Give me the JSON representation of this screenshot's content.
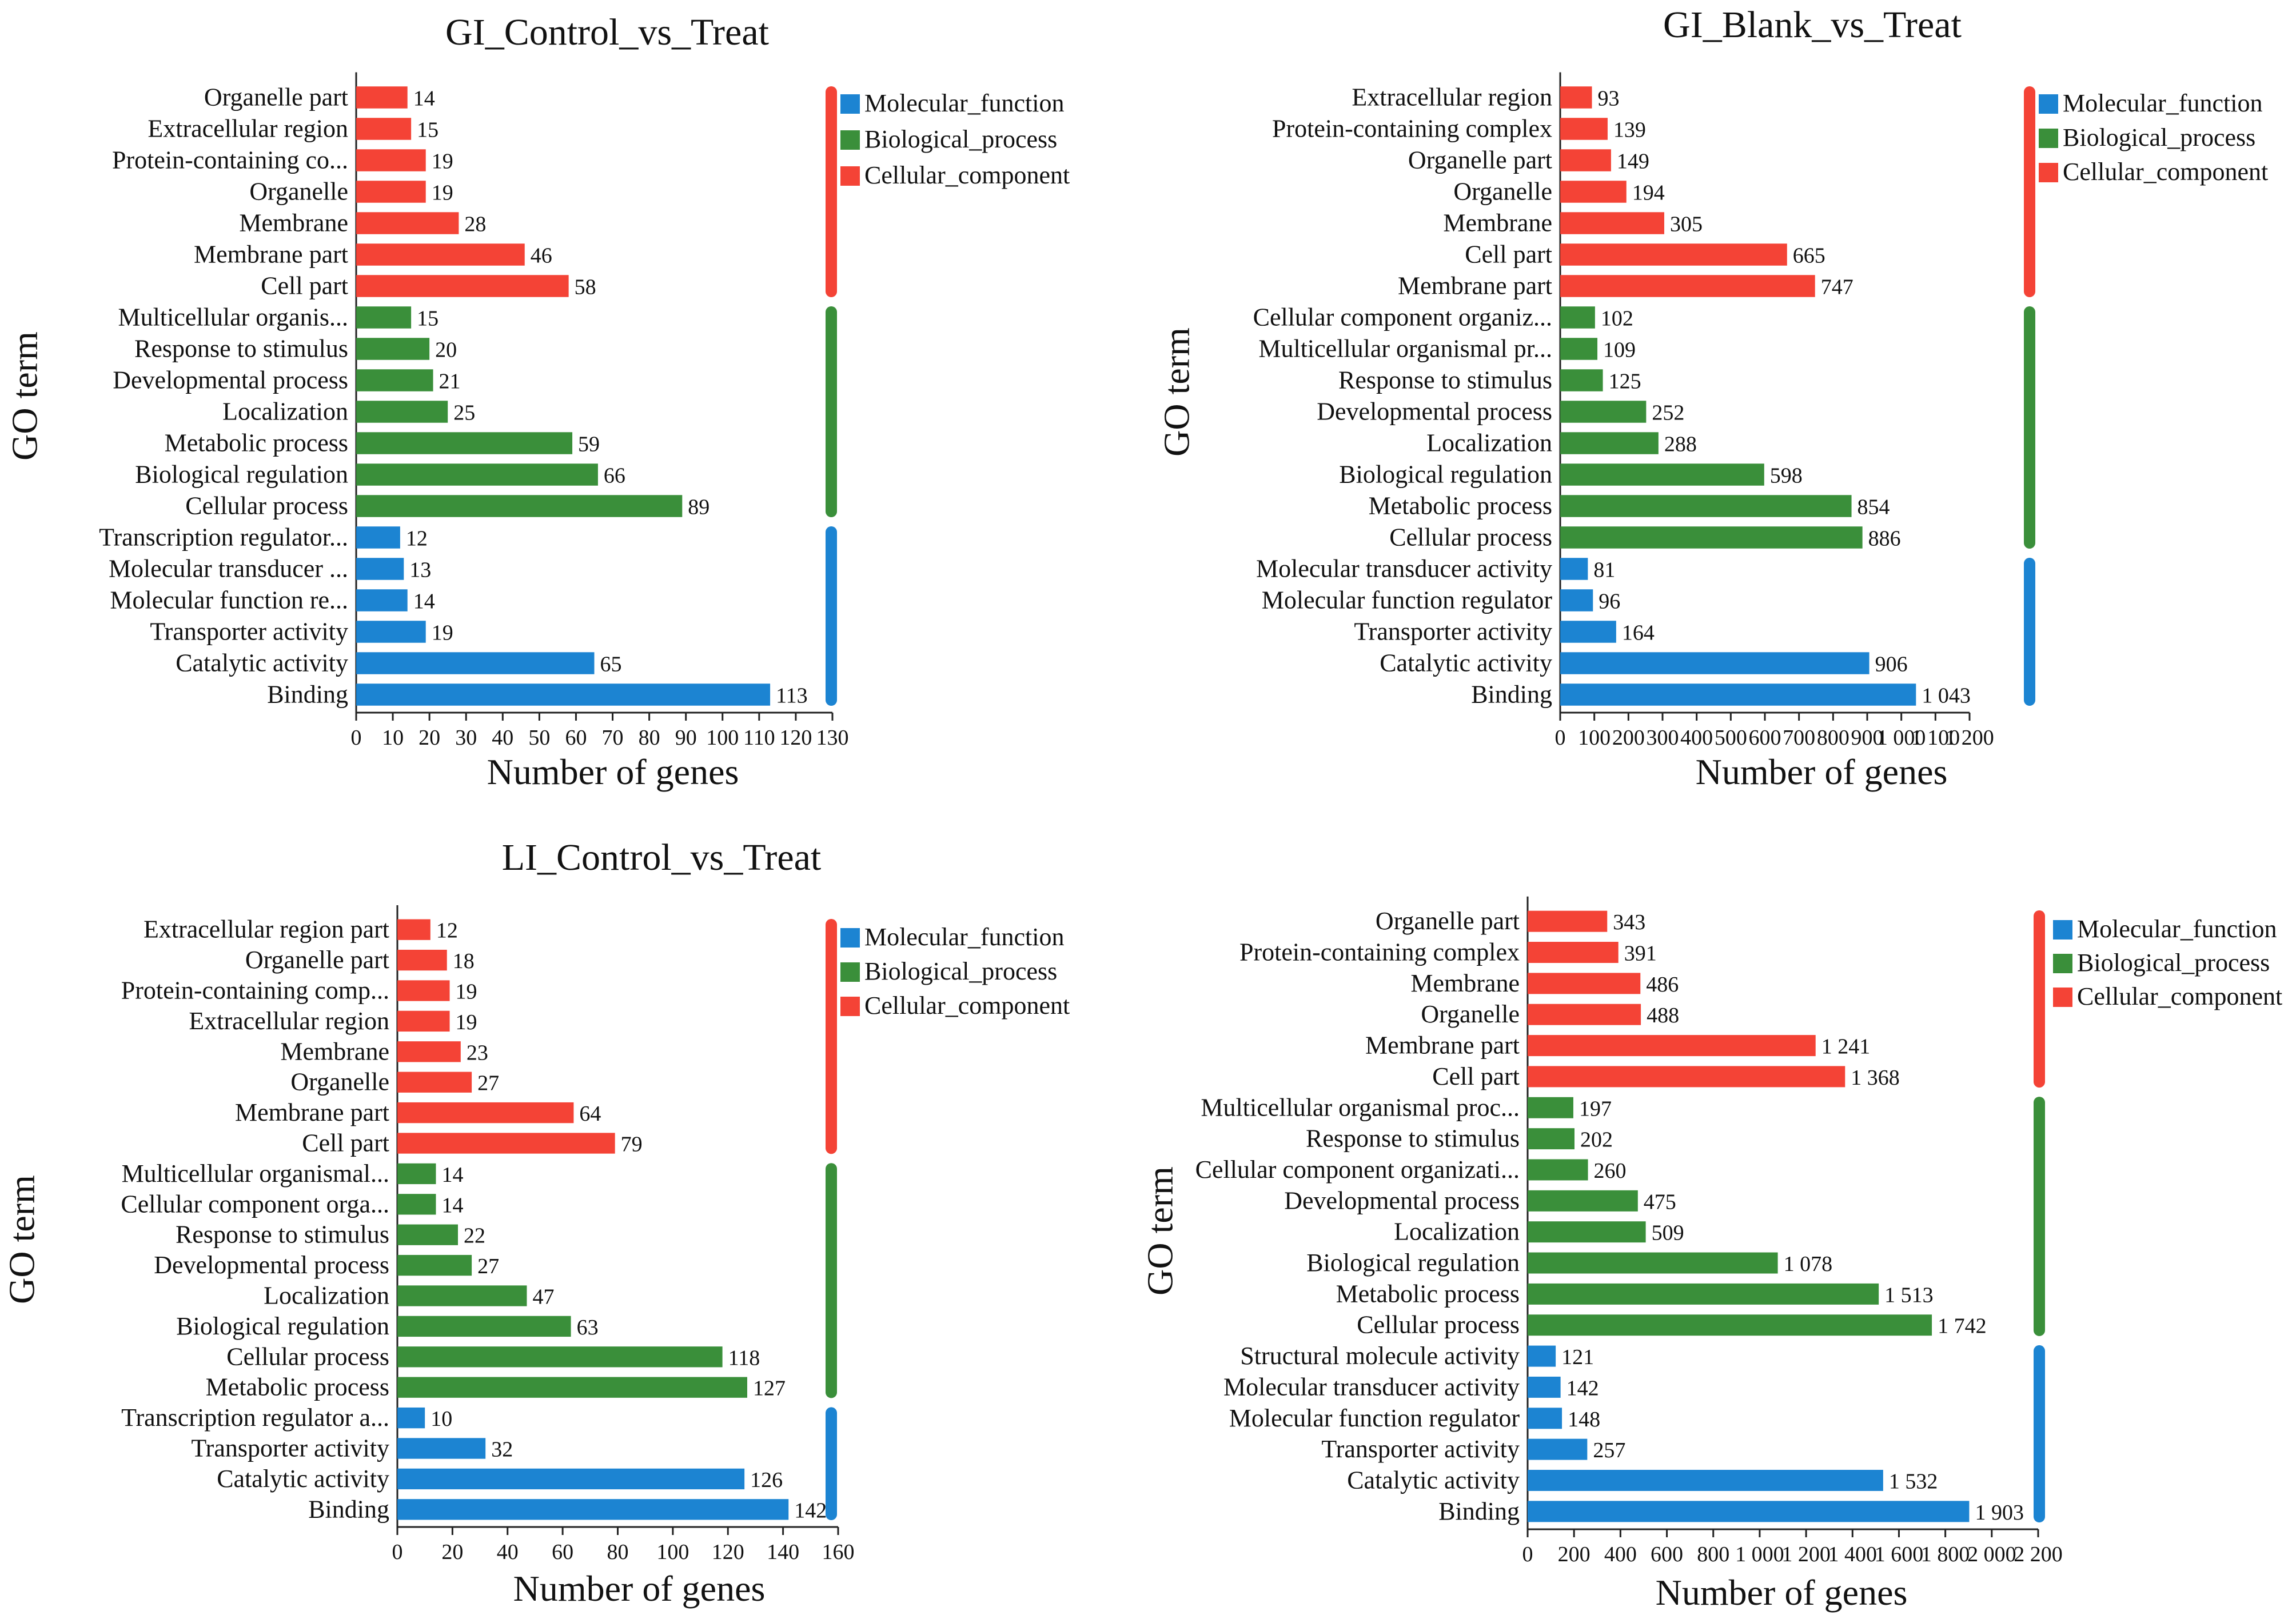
{
  "colors": {
    "molecular_function": "#1C84D2",
    "biological_process": "#3A8F3A",
    "cellular_component": "#F44336"
  },
  "chart_data": [
    {
      "type": "bar",
      "orientation": "horizontal",
      "title": "GI_Control_vs_Treat",
      "xlabel": "Number of genes",
      "ylabel": "GO term",
      "xlim": [
        0,
        130
      ],
      "xticks": [
        "0",
        "10",
        "20",
        "30",
        "40",
        "50",
        "60",
        "70",
        "80",
        "90",
        "100",
        "110",
        "120",
        "130"
      ],
      "legend": [
        "Molecular_function",
        "Biological_process",
        "Cellular_component"
      ],
      "legend_position": "right",
      "groups": [
        {
          "name": "Cellular_component",
          "labels": [
            "Organelle part",
            "Extracellular region",
            "Protein-containing co...",
            "Organelle",
            "Membrane",
            "Membrane part",
            "Cell part"
          ],
          "values": [
            14,
            15,
            19,
            19,
            28,
            46,
            58
          ],
          "value_labels": [
            "14",
            "15",
            "19",
            "19",
            "28",
            "46",
            "58"
          ]
        },
        {
          "name": "Biological_process",
          "labels": [
            "Multicellular organis...",
            "Response to stimulus",
            "Developmental process",
            "Localization",
            "Metabolic process",
            "Biological regulation",
            "Cellular process"
          ],
          "values": [
            15,
            20,
            21,
            25,
            59,
            66,
            89
          ],
          "value_labels": [
            "15",
            "20",
            "21",
            "25",
            "59",
            "66",
            "89"
          ]
        },
        {
          "name": "Molecular_function",
          "labels": [
            "Transcription regulator...",
            "Molecular transducer ...",
            "Molecular function re...",
            "Transporter activity",
            "Catalytic activity",
            "Binding"
          ],
          "values": [
            12,
            13,
            14,
            19,
            65,
            113
          ],
          "value_labels": [
            "12",
            "13",
            "14",
            "19",
            "65",
            "113"
          ]
        }
      ]
    },
    {
      "type": "bar",
      "orientation": "horizontal",
      "title": "GI_Blank_vs_Treat",
      "xlabel": "Number of genes",
      "ylabel": "GO term",
      "xlim": [
        0,
        1200
      ],
      "xticks": [
        "0",
        "100",
        "200",
        "300",
        "400",
        "500",
        "600",
        "700",
        "800",
        "900",
        "1 000",
        "1 100",
        "1 200"
      ],
      "legend": [
        "Molecular_function",
        "Biological_process",
        "Cellular_component"
      ],
      "legend_position": "right",
      "groups": [
        {
          "name": "Cellular_component",
          "labels": [
            "Extracellular region",
            "Protein-containing complex",
            "Organelle part",
            "Organelle",
            "Membrane",
            "Cell part",
            "Membrane part"
          ],
          "values": [
            93,
            139,
            149,
            194,
            305,
            665,
            747
          ],
          "value_labels": [
            "93",
            "139",
            "149",
            "194",
            "305",
            "665",
            "747"
          ]
        },
        {
          "name": "Biological_process",
          "labels": [
            "Cellular component organiz...",
            "Multicellular organismal pr...",
            "Response to stimulus",
            "Developmental process",
            "Localization",
            "Biological regulation",
            "Metabolic process",
            "Cellular process"
          ],
          "values": [
            102,
            109,
            125,
            252,
            288,
            598,
            854,
            886
          ],
          "value_labels": [
            "102",
            "109",
            "125",
            "252",
            "288",
            "598",
            "854",
            "886"
          ]
        },
        {
          "name": "Molecular_function",
          "labels": [
            "Molecular transducer activity",
            "Molecular function regulator",
            "Transporter activity",
            "Catalytic activity",
            "Binding"
          ],
          "values": [
            81,
            96,
            164,
            906,
            1043
          ],
          "value_labels": [
            "81",
            "96",
            "164",
            "906",
            "1 043"
          ]
        }
      ]
    },
    {
      "type": "bar",
      "orientation": "horizontal",
      "title": "LI_Control_vs_Treat",
      "xlabel": "Number of genes",
      "ylabel": "GO term",
      "xlim": [
        0,
        160
      ],
      "xticks": [
        "0",
        "20",
        "40",
        "60",
        "80",
        "100",
        "120",
        "140",
        "160"
      ],
      "legend": [
        "Molecular_function",
        "Biological_process",
        "Cellular_component"
      ],
      "legend_position": "right",
      "groups": [
        {
          "name": "Cellular_component",
          "labels": [
            "Extracellular region part",
            "Organelle part",
            "Protein-containing comp...",
            "Extracellular region",
            "Membrane",
            "Organelle",
            "Membrane part",
            "Cell part"
          ],
          "values": [
            12,
            18,
            19,
            19,
            23,
            27,
            64,
            79
          ],
          "value_labels": [
            "12",
            "18",
            "19",
            "19",
            "23",
            "27",
            "64",
            "79"
          ]
        },
        {
          "name": "Biological_process",
          "labels": [
            "Multicellular organismal...",
            "Cellular component orga...",
            "Response to stimulus",
            "Developmental process",
            "Localization",
            "Biological regulation",
            "Cellular process",
            "Metabolic process"
          ],
          "values": [
            14,
            14,
            22,
            27,
            47,
            63,
            118,
            127
          ],
          "value_labels": [
            "14",
            "14",
            "22",
            "27",
            "47",
            "63",
            "118",
            "127"
          ]
        },
        {
          "name": "Molecular_function",
          "labels": [
            "Transcription regulator a...",
            "Transporter activity",
            "Catalytic activity",
            "Binding"
          ],
          "values": [
            10,
            32,
            126,
            142
          ],
          "value_labels": [
            "10",
            "32",
            "126",
            "142"
          ]
        }
      ]
    },
    {
      "type": "bar",
      "orientation": "horizontal",
      "title": "",
      "xlabel": "Number of genes",
      "ylabel": "GO term",
      "xlim": [
        0,
        2200
      ],
      "xticks": [
        "0",
        "200",
        "400",
        "600",
        "800",
        "1 000",
        "1 200",
        "1 400",
        "1 600",
        "1 800",
        "2 000",
        "2 200"
      ],
      "legend": [
        "Molecular_function",
        "Biological_process",
        "Cellular_component"
      ],
      "legend_position": "right",
      "groups": [
        {
          "name": "Cellular_component",
          "labels": [
            "Organelle part",
            "Protein-containing complex",
            "Membrane",
            "Organelle",
            "Membrane part",
            "Cell part"
          ],
          "values": [
            343,
            391,
            486,
            488,
            1241,
            1368
          ],
          "value_labels": [
            "343",
            "391",
            "486",
            "488",
            "1 241",
            "1 368"
          ]
        },
        {
          "name": "Biological_process",
          "labels": [
            "Multicellular organismal proc...",
            "Response to stimulus",
            "Cellular component organizati...",
            "Developmental process",
            "Localization",
            "Biological regulation",
            "Metabolic process",
            "Cellular process"
          ],
          "values": [
            197,
            202,
            260,
            475,
            509,
            1078,
            1513,
            1742
          ],
          "value_labels": [
            "197",
            "202",
            "260",
            "475",
            "509",
            "1 078",
            "1 513",
            "1 742"
          ]
        },
        {
          "name": "Molecular_function",
          "labels": [
            "Structural molecule activity",
            "Molecular transducer activity",
            "Molecular function regulator",
            "Transporter activity",
            "Catalytic activity",
            "Binding"
          ],
          "values": [
            121,
            142,
            148,
            257,
            1532,
            1903
          ],
          "value_labels": [
            "121",
            "142",
            "148",
            "257",
            "1 532",
            "1 903"
          ]
        }
      ]
    }
  ]
}
